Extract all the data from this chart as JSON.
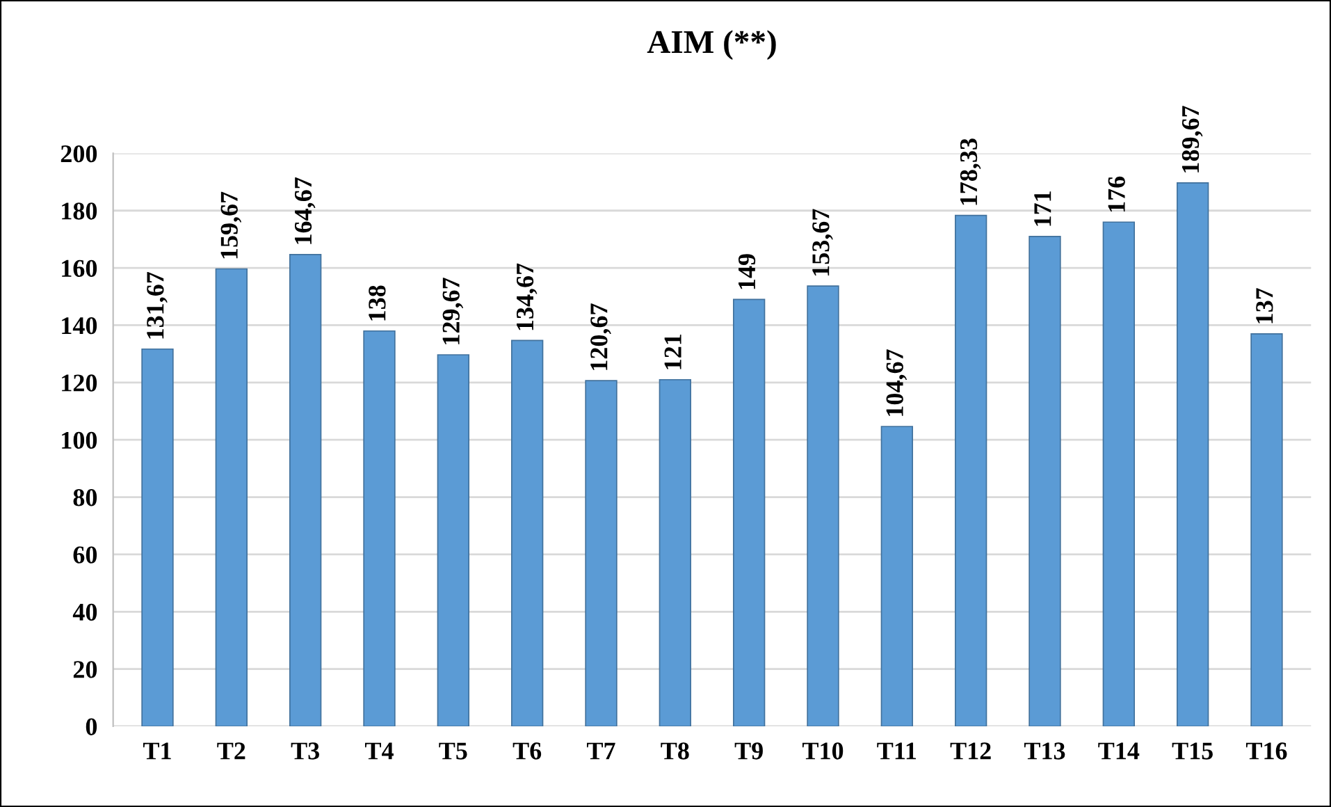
{
  "chart_data": {
    "type": "bar",
    "title": "AIM (**)",
    "categories": [
      "T1",
      "T2",
      "T3",
      "T4",
      "T5",
      "T6",
      "T7",
      "T8",
      "T9",
      "T10",
      "T11",
      "T12",
      "T13",
      "T14",
      "T15",
      "T16"
    ],
    "values": [
      131.67,
      159.67,
      164.67,
      138,
      129.67,
      134.67,
      120.67,
      121,
      149,
      153.67,
      104.67,
      178.33,
      171,
      176,
      189.67,
      137
    ],
    "value_labels": [
      "131,67",
      "159,67",
      "164,67",
      "138",
      "129,67",
      "134,67",
      "120,67",
      "121",
      "149",
      "153,67",
      "104,67",
      "178,33",
      "171",
      "176",
      "189,67",
      "137"
    ],
    "color": "#5b9bd5",
    "ylim": [
      0,
      200
    ],
    "yticks": [
      0,
      20,
      40,
      60,
      80,
      100,
      120,
      140,
      160,
      180,
      200
    ],
    "grid": "y"
  }
}
